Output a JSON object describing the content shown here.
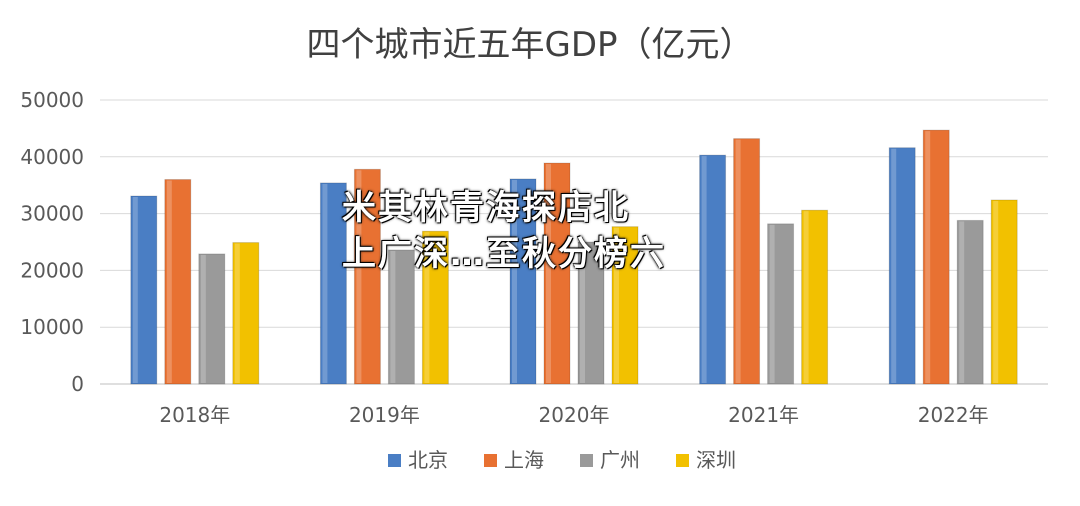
{
  "chart_data": {
    "type": "bar",
    "title": "四个城市近五年GDP（亿元）",
    "categories": [
      "2018年",
      "2019年",
      "2020年",
      "2021年",
      "2022年"
    ],
    "series": [
      {
        "name": "北京",
        "color": "#4a7ec4",
        "values": [
          33100,
          35400,
          36100,
          40300,
          41600
        ]
      },
      {
        "name": "上海",
        "color": "#e87132",
        "values": [
          36000,
          37800,
          38900,
          43200,
          44700
        ]
      },
      {
        "name": "广州",
        "color": "#9a9a9a",
        "values": [
          22900,
          23600,
          25000,
          28200,
          28800
        ]
      },
      {
        "name": "深圳",
        "color": "#f2c100",
        "values": [
          24900,
          26900,
          27700,
          30600,
          32400
        ]
      }
    ],
    "ylim": [
      0,
      50000
    ],
    "yticks": [
      "0",
      "10000",
      "20000",
      "30000",
      "40000",
      "50000"
    ],
    "grid": true,
    "legend_position": "bottom"
  },
  "overlay": {
    "line1": "米其林青海探店北",
    "line2": "上广深…至秋分榜六"
  }
}
